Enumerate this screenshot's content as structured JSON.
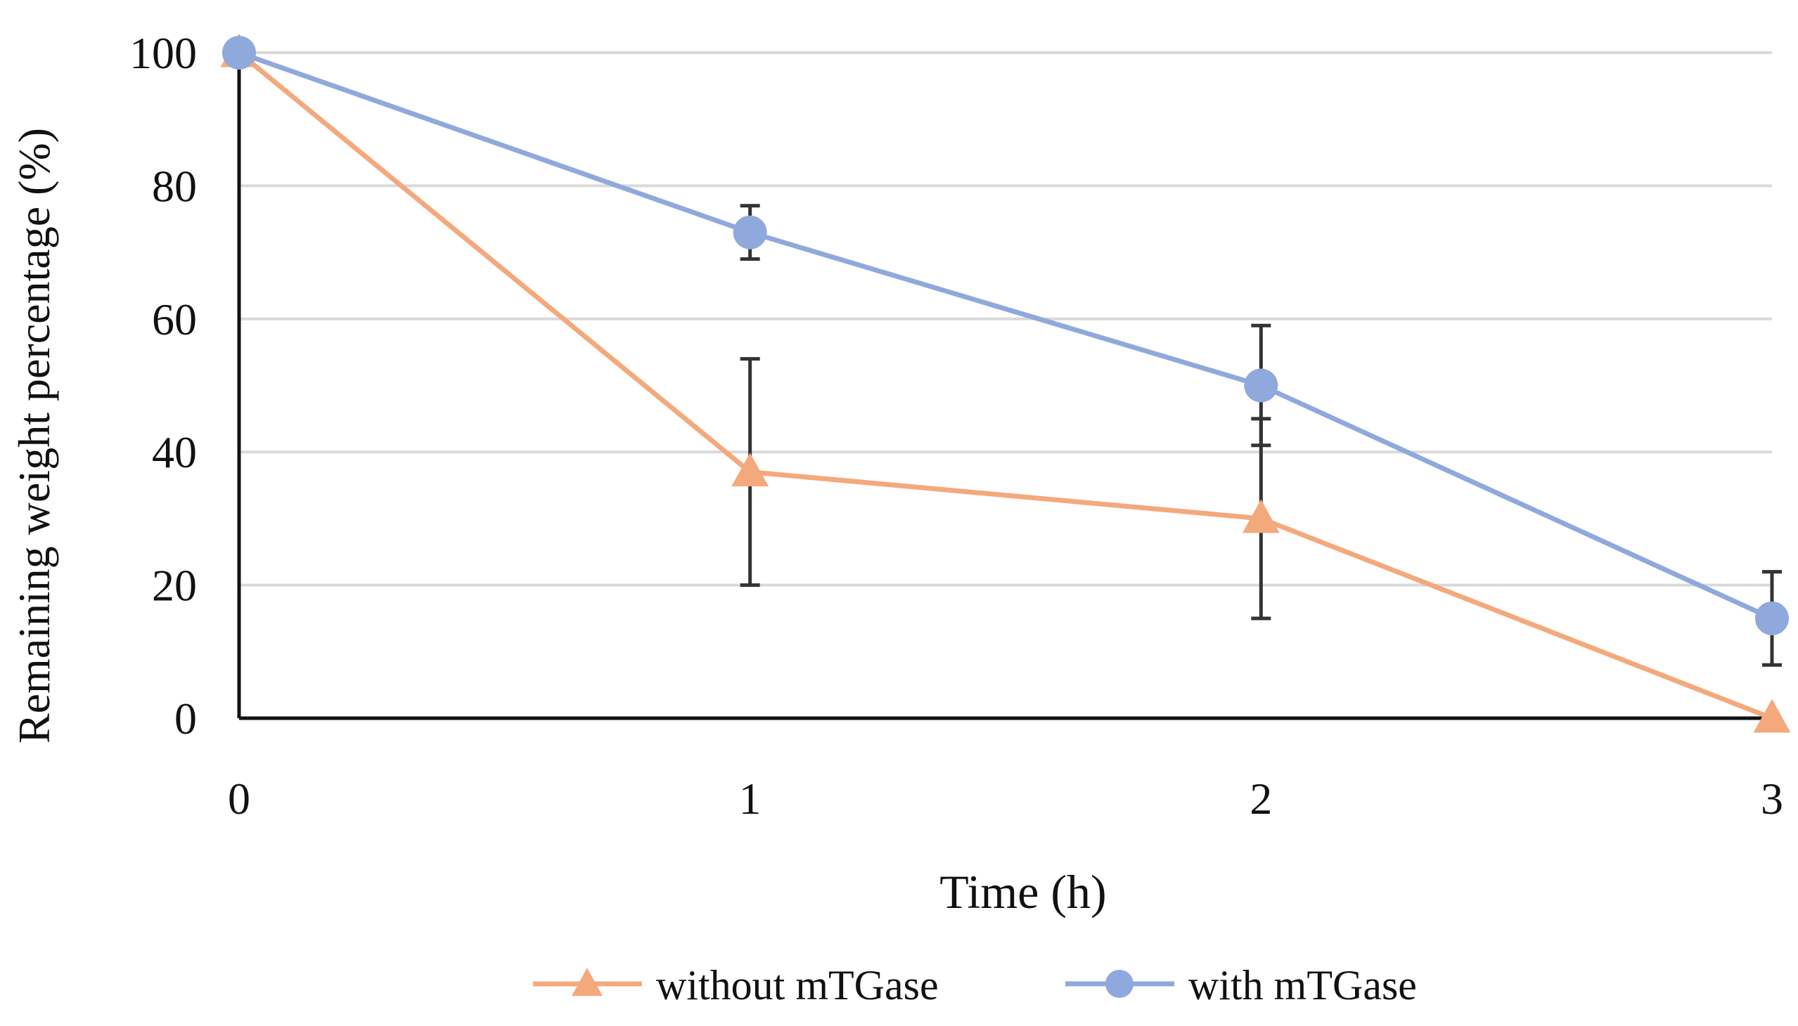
{
  "chart_data": {
    "type": "line",
    "x": [
      0,
      1,
      2,
      3
    ],
    "xlabel": "Time (h)",
    "ylabel": "Remaining weight  percentage (%)",
    "xlim": [
      0,
      3
    ],
    "ylim": [
      0,
      100
    ],
    "xticks": [
      "0",
      "1",
      "2",
      "3"
    ],
    "yticks": [
      "0",
      "20",
      "40",
      "60",
      "80",
      "100"
    ],
    "grid": "horizontal",
    "legend": "bottom-center",
    "series": [
      {
        "name": "without mTGase",
        "values": [
          100,
          37,
          30,
          0
        ],
        "error": [
          0,
          17,
          15,
          0
        ],
        "color": "#f4a97c",
        "marker": "triangle"
      },
      {
        "name": "with mTGase",
        "values": [
          100,
          73,
          50,
          15
        ],
        "error": [
          0,
          4,
          9,
          7
        ],
        "color": "#8fa9dc",
        "marker": "circle"
      }
    ],
    "colors": {
      "axis": "#111111",
      "grid": "#d9d9d9",
      "errorbar": "#333333"
    }
  }
}
